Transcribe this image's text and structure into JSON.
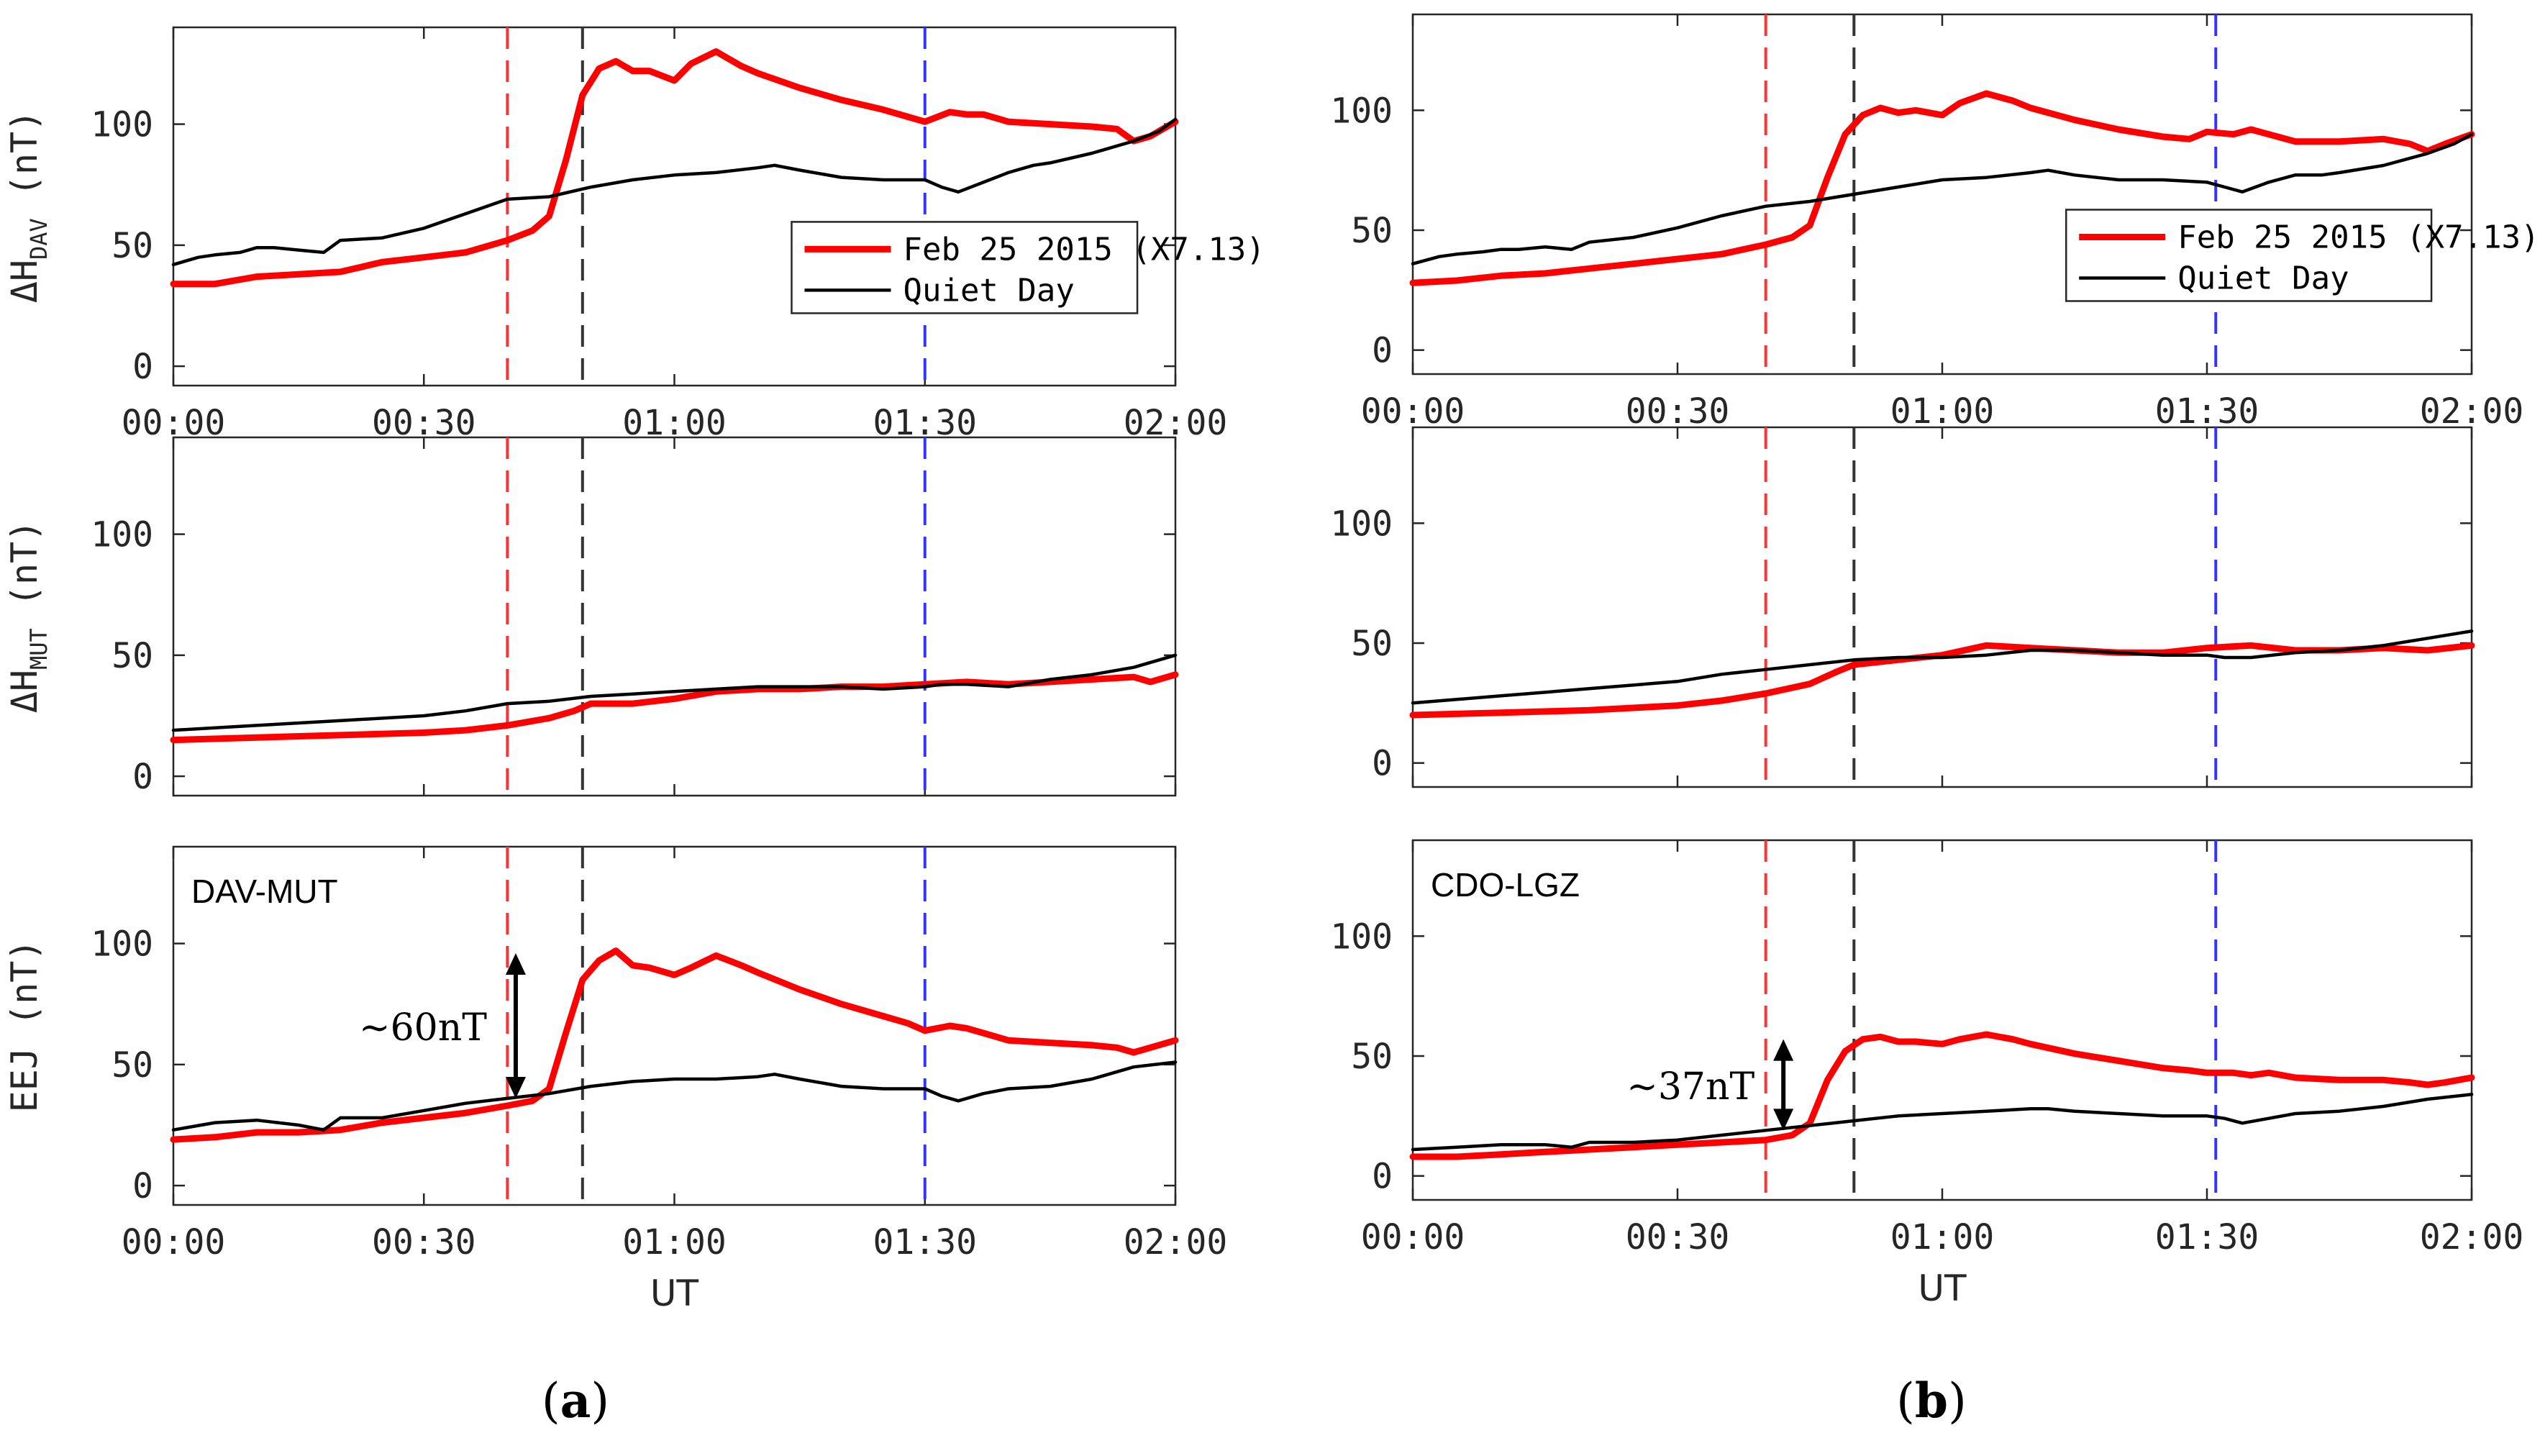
{
  "figure": {
    "panel_labels": [
      {
        "open": "(",
        "letter": "a",
        "close": ")"
      },
      {
        "open": "(",
        "letter": "b",
        "close": ")"
      }
    ]
  },
  "chart_data": [
    {
      "type": "line",
      "panel": "a",
      "ylabel_prefix": "ΔH",
      "ylabel_sub": "DAV",
      "ylabel_unit": "(nT)",
      "xlim": [
        0,
        120
      ],
      "ylim": [
        -8,
        140
      ],
      "xticks": [
        0,
        30,
        60,
        90,
        120
      ],
      "xticklabels": [
        "00:00",
        "00:30",
        "01:00",
        "01:30",
        "02:00"
      ],
      "yticks": [
        0,
        50,
        100
      ],
      "vlines": [
        {
          "x": 40,
          "color": "#ff3333"
        },
        {
          "x": 49,
          "color": "#333333"
        },
        {
          "x": 90,
          "color": "#3333ff"
        }
      ],
      "legend": {
        "placement": "center-right",
        "entries": [
          "Feb 25 2015 (X7.13)",
          "Quiet Day"
        ]
      },
      "series": [
        {
          "name": "Feb 25 2015 (X7.13)",
          "color": "#ff0000",
          "x": [
            0,
            5,
            10,
            15,
            20,
            25,
            30,
            35,
            40,
            43,
            45,
            47,
            49,
            51,
            53,
            55,
            57,
            60,
            62,
            65,
            68,
            70,
            75,
            80,
            85,
            88,
            90,
            93,
            95,
            97,
            100,
            105,
            110,
            113,
            115,
            117,
            120
          ],
          "y": [
            34,
            34,
            37,
            38,
            39,
            43,
            45,
            47,
            52,
            56,
            62,
            85,
            112,
            123,
            126,
            122,
            122,
            118,
            125,
            130,
            124,
            121,
            115,
            110,
            106,
            103,
            101,
            105,
            104,
            104,
            101,
            100,
            99,
            98,
            93,
            95,
            101
          ]
        },
        {
          "name": "Quiet Day",
          "color": "#000000",
          "x": [
            0,
            3,
            5,
            8,
            10,
            12,
            15,
            18,
            20,
            25,
            30,
            35,
            40,
            45,
            50,
            55,
            60,
            65,
            70,
            72,
            75,
            80,
            85,
            90,
            92,
            94,
            97,
            100,
            103,
            105,
            110,
            115,
            118,
            120
          ],
          "y": [
            42,
            45,
            46,
            47,
            49,
            49,
            48,
            47,
            52,
            53,
            57,
            63,
            69,
            70,
            74,
            77,
            79,
            80,
            82,
            83,
            81,
            78,
            77,
            77,
            74,
            72,
            76,
            80,
            83,
            84,
            88,
            93,
            97,
            102
          ]
        }
      ]
    },
    {
      "type": "line",
      "panel": "a",
      "ylabel_prefix": "ΔH",
      "ylabel_sub": "MUT",
      "ylabel_unit": "(nT)",
      "xlim": [
        0,
        120
      ],
      "ylim": [
        -8,
        140
      ],
      "xticks": [
        0,
        30,
        60,
        90,
        120
      ],
      "yticks": [
        0,
        50,
        100
      ],
      "vlines": [
        {
          "x": 40,
          "color": "#ff3333"
        },
        {
          "x": 49,
          "color": "#333333"
        },
        {
          "x": 90,
          "color": "#3333ff"
        }
      ],
      "series": [
        {
          "name": "Feb 25 2015 (X7.13)",
          "color": "#ff0000",
          "x": [
            0,
            10,
            20,
            30,
            35,
            40,
            45,
            48,
            50,
            55,
            60,
            65,
            70,
            75,
            80,
            85,
            90,
            95,
            100,
            105,
            110,
            115,
            117,
            120
          ],
          "y": [
            15,
            16,
            17,
            18,
            19,
            21,
            24,
            27,
            30,
            30,
            32,
            35,
            36,
            36,
            37,
            37,
            38,
            39,
            38,
            39,
            40,
            41,
            39,
            42
          ]
        },
        {
          "name": "Quiet Day",
          "color": "#000000",
          "x": [
            0,
            10,
            20,
            30,
            35,
            40,
            45,
            50,
            55,
            60,
            65,
            70,
            75,
            80,
            85,
            90,
            92,
            95,
            100,
            105,
            110,
            115,
            120
          ],
          "y": [
            19,
            21,
            23,
            25,
            27,
            30,
            31,
            33,
            34,
            35,
            36,
            37,
            37,
            37,
            36,
            37,
            38,
            38,
            37,
            40,
            42,
            45,
            50
          ]
        }
      ]
    },
    {
      "type": "line",
      "panel": "a",
      "station": "DAV-MUT",
      "ylabel": "EEJ  (nT)",
      "xlabel": "UT",
      "xlim": [
        0,
        120
      ],
      "ylim": [
        -8,
        140
      ],
      "xticks": [
        0,
        30,
        60,
        90,
        120
      ],
      "xticklabels": [
        "00:00",
        "00:30",
        "01:00",
        "01:30",
        "02:00"
      ],
      "yticks": [
        0,
        50,
        100
      ],
      "vlines": [
        {
          "x": 40,
          "color": "#ff3333"
        },
        {
          "x": 49,
          "color": "#333333"
        },
        {
          "x": 90,
          "color": "#3333ff"
        }
      ],
      "annotation": {
        "text": "~60nT",
        "x": 41,
        "y_from": 36,
        "y_to": 96
      },
      "series": [
        {
          "name": "Feb 25 2015 (X7.13)",
          "color": "#ff0000",
          "x": [
            0,
            5,
            10,
            15,
            20,
            25,
            30,
            35,
            40,
            43,
            45,
            47,
            49,
            51,
            53,
            55,
            57,
            60,
            62,
            65,
            68,
            70,
            75,
            80,
            85,
            88,
            90,
            93,
            95,
            97,
            100,
            105,
            110,
            113,
            115,
            117,
            120
          ],
          "y": [
            19,
            20,
            22,
            22,
            23,
            26,
            28,
            30,
            33,
            35,
            40,
            63,
            85,
            93,
            97,
            91,
            90,
            87,
            90,
            95,
            91,
            88,
            81,
            75,
            70,
            67,
            64,
            66,
            65,
            63,
            60,
            59,
            58,
            57,
            55,
            57,
            60
          ]
        },
        {
          "name": "Quiet Day",
          "color": "#000000",
          "x": [
            0,
            5,
            10,
            15,
            18,
            20,
            25,
            30,
            35,
            40,
            45,
            50,
            55,
            60,
            65,
            70,
            72,
            75,
            80,
            85,
            90,
            92,
            94,
            97,
            100,
            105,
            110,
            115,
            120
          ],
          "y": [
            23,
            26,
            27,
            25,
            23,
            28,
            28,
            31,
            34,
            36,
            38,
            41,
            43,
            44,
            44,
            45,
            46,
            44,
            41,
            40,
            40,
            37,
            35,
            38,
            40,
            41,
            44,
            49,
            51
          ]
        }
      ]
    },
    {
      "type": "line",
      "panel": "b",
      "ylabel_prefix": "",
      "ylabel_sub": "",
      "ylabel_unit": "",
      "xlim": [
        0,
        120
      ],
      "ylim": [
        -10,
        140
      ],
      "xticks": [
        0,
        30,
        60,
        90,
        120
      ],
      "xticklabels": [
        "00:00",
        "00:30",
        "01:00",
        "01:30",
        "02:00"
      ],
      "yticks": [
        0,
        50,
        100
      ],
      "vlines": [
        {
          "x": 40,
          "color": "#ff3333"
        },
        {
          "x": 50,
          "color": "#333333"
        },
        {
          "x": 91,
          "color": "#3333ff"
        }
      ],
      "legend": {
        "placement": "center-right",
        "entries": [
          "Feb 25 2015 (X7.13)",
          "Quiet Day"
        ]
      },
      "series": [
        {
          "name": "Feb 25 2015 (X7.13)",
          "color": "#ff0000",
          "x": [
            0,
            5,
            10,
            15,
            20,
            25,
            30,
            35,
            40,
            43,
            45,
            47,
            49,
            51,
            53,
            55,
            57,
            60,
            62,
            65,
            68,
            70,
            75,
            80,
            85,
            88,
            90,
            93,
            95,
            97,
            100,
            105,
            110,
            113,
            115,
            117,
            120
          ],
          "y": [
            28,
            29,
            31,
            32,
            34,
            36,
            38,
            40,
            44,
            47,
            52,
            72,
            90,
            98,
            101,
            99,
            100,
            98,
            103,
            107,
            104,
            101,
            96,
            92,
            89,
            88,
            91,
            90,
            92,
            90,
            87,
            87,
            88,
            86,
            83,
            86,
            90
          ]
        },
        {
          "name": "Quiet Day",
          "color": "#000000",
          "x": [
            0,
            3,
            5,
            8,
            10,
            12,
            15,
            18,
            20,
            25,
            30,
            35,
            40,
            45,
            50,
            55,
            60,
            65,
            70,
            72,
            75,
            80,
            85,
            90,
            92,
            94,
            97,
            100,
            103,
            105,
            110,
            115,
            118,
            120
          ],
          "y": [
            36,
            39,
            40,
            41,
            42,
            42,
            43,
            42,
            45,
            47,
            51,
            56,
            60,
            62,
            65,
            68,
            71,
            72,
            74,
            75,
            73,
            71,
            71,
            70,
            68,
            66,
            70,
            73,
            73,
            74,
            77,
            82,
            86,
            90
          ]
        }
      ]
    },
    {
      "type": "line",
      "panel": "b",
      "ylabel": "",
      "xlim": [
        0,
        120
      ],
      "ylim": [
        -10,
        140
      ],
      "xticks": [
        0,
        30,
        60,
        90,
        120
      ],
      "yticks": [
        0,
        50,
        100
      ],
      "vlines": [
        {
          "x": 40,
          "color": "#ff3333"
        },
        {
          "x": 50,
          "color": "#333333"
        },
        {
          "x": 91,
          "color": "#3333ff"
        }
      ],
      "series": [
        {
          "name": "Feb 25 2015 (X7.13)",
          "color": "#ff0000",
          "x": [
            0,
            10,
            20,
            30,
            35,
            40,
            45,
            48,
            50,
            55,
            60,
            65,
            70,
            75,
            80,
            85,
            90,
            95,
            100,
            105,
            110,
            115,
            120
          ],
          "y": [
            20,
            21,
            22,
            24,
            26,
            29,
            33,
            38,
            41,
            43,
            45,
            49,
            48,
            47,
            46,
            46,
            48,
            49,
            47,
            47,
            48,
            47,
            49
          ]
        },
        {
          "name": "Quiet Day",
          "color": "#000000",
          "x": [
            0,
            10,
            20,
            30,
            35,
            40,
            45,
            50,
            55,
            60,
            65,
            70,
            75,
            80,
            85,
            90,
            92,
            95,
            100,
            105,
            110,
            115,
            120
          ],
          "y": [
            25,
            28,
            31,
            34,
            37,
            39,
            41,
            43,
            44,
            44,
            45,
            47,
            47,
            46,
            45,
            45,
            44,
            44,
            46,
            47,
            49,
            52,
            55
          ]
        }
      ]
    },
    {
      "type": "line",
      "panel": "b",
      "station": "CDO-LGZ",
      "ylabel": "",
      "xlabel": "UT",
      "xlim": [
        0,
        120
      ],
      "ylim": [
        -10,
        140
      ],
      "xticks": [
        0,
        30,
        60,
        90,
        120
      ],
      "xticklabels": [
        "00:00",
        "00:30",
        "01:00",
        "01:30",
        "02:00"
      ],
      "yticks": [
        0,
        50,
        100
      ],
      "vlines": [
        {
          "x": 40,
          "color": "#ff3333"
        },
        {
          "x": 50,
          "color": "#333333"
        },
        {
          "x": 91,
          "color": "#3333ff"
        }
      ],
      "annotation": {
        "text": "~37nT",
        "x": 42,
        "y_from": 19,
        "y_to": 57
      },
      "series": [
        {
          "name": "Feb 25 2015 (X7.13)",
          "color": "#ff0000",
          "x": [
            0,
            5,
            10,
            15,
            20,
            25,
            30,
            35,
            40,
            43,
            45,
            47,
            49,
            51,
            53,
            55,
            57,
            60,
            62,
            65,
            68,
            70,
            75,
            80,
            85,
            88,
            90,
            93,
            95,
            97,
            100,
            105,
            110,
            113,
            115,
            117,
            120
          ],
          "y": [
            8,
            8,
            9,
            10,
            11,
            12,
            13,
            14,
            15,
            17,
            22,
            40,
            52,
            57,
            58,
            56,
            56,
            55,
            57,
            59,
            57,
            55,
            51,
            48,
            45,
            44,
            43,
            43,
            42,
            43,
            41,
            40,
            40,
            39,
            38,
            39,
            41
          ]
        },
        {
          "name": "Quiet Day",
          "color": "#000000",
          "x": [
            0,
            5,
            10,
            15,
            18,
            20,
            25,
            30,
            35,
            40,
            45,
            50,
            55,
            60,
            65,
            70,
            72,
            75,
            80,
            85,
            90,
            92,
            94,
            97,
            100,
            105,
            110,
            115,
            120
          ],
          "y": [
            11,
            12,
            13,
            13,
            12,
            14,
            14,
            15,
            17,
            19,
            21,
            23,
            25,
            26,
            27,
            28,
            28,
            27,
            26,
            25,
            25,
            24,
            22,
            24,
            26,
            27,
            29,
            32,
            34
          ]
        }
      ]
    }
  ]
}
